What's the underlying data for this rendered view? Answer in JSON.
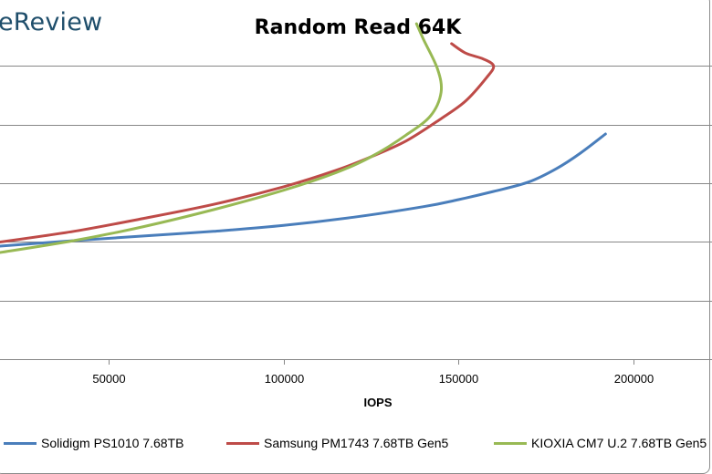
{
  "logo_text": "eReview",
  "chart_data": {
    "type": "line",
    "title": "Random Read 64K",
    "xlabel": "IOPS",
    "ylabel": "",
    "xlim": [
      17000,
      220000
    ],
    "ylim": [
      0,
      6
    ],
    "xticks": [
      50000,
      100000,
      150000,
      200000
    ],
    "xtick_labels": [
      "50000",
      "100000",
      "150000",
      "200000"
    ],
    "y_gridlines": [
      1,
      2,
      3,
      4,
      5
    ],
    "grid": true,
    "legend_position": "bottom",
    "series": [
      {
        "name": "Solidigm PS1010 7.68TB",
        "color": "#4a7ebb",
        "x": [
          17000,
          40000,
          60000,
          80000,
          100000,
          120000,
          140000,
          150000,
          160000,
          170000,
          178000,
          185000,
          192000
        ],
        "y": [
          1.92,
          2.02,
          2.1,
          2.18,
          2.28,
          2.42,
          2.6,
          2.72,
          2.86,
          3.02,
          3.25,
          3.52,
          3.84
        ]
      },
      {
        "name": "Samsung PM1743 7.68TB Gen5",
        "color": "#be4b48",
        "x": [
          17000,
          40000,
          60000,
          80000,
          100000,
          115000,
          125000,
          135000,
          145000,
          152000,
          158000,
          160000,
          157000,
          152000,
          148000
        ],
        "y": [
          1.98,
          2.18,
          2.4,
          2.64,
          2.94,
          3.22,
          3.45,
          3.72,
          4.1,
          4.4,
          4.8,
          5.0,
          5.12,
          5.22,
          5.38
        ]
      },
      {
        "name": "KIOXIA CM7 U.2 7.68TB Gen5",
        "color": "#98b954",
        "x": [
          17000,
          40000,
          60000,
          80000,
          100000,
          115000,
          125000,
          135000,
          142000,
          145000,
          144000,
          140000,
          138000
        ],
        "y": [
          1.8,
          2.02,
          2.26,
          2.55,
          2.88,
          3.18,
          3.45,
          3.82,
          4.15,
          4.55,
          4.95,
          5.45,
          5.72
        ]
      }
    ]
  }
}
